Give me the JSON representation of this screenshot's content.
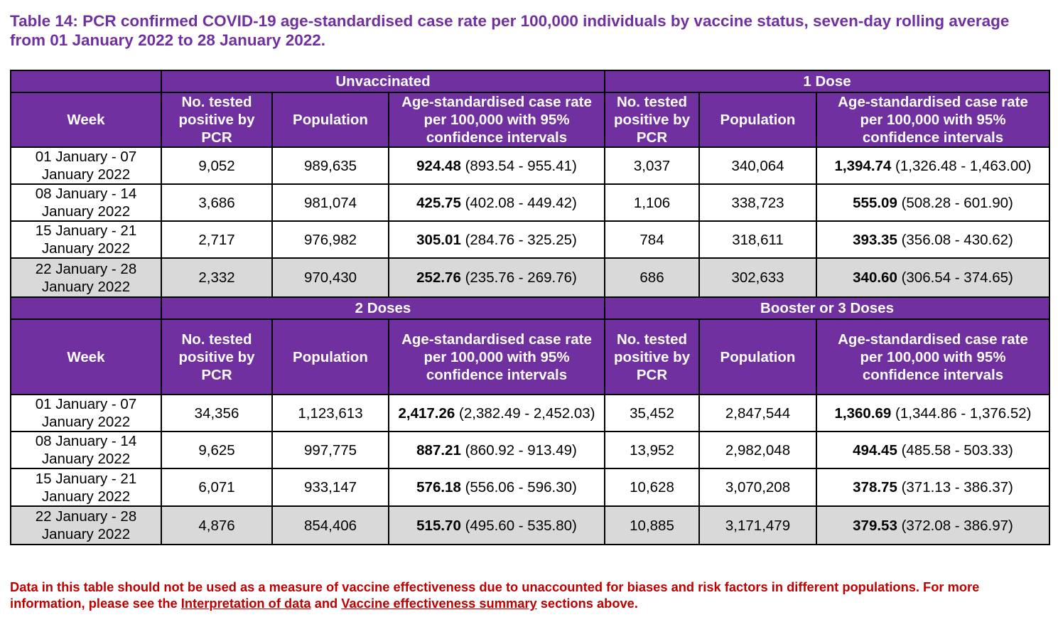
{
  "title": "Table 14: PCR confirmed COVID-19 age-standardised case rate per 100,000 individuals by vaccine status, seven-day rolling average from 01 January 2022 to 28 January 2022.",
  "headers": {
    "week": "Week",
    "tested": "No. tested positive by PCR",
    "tested_short": "No. tested positive by PCR",
    "population": "Population",
    "rate": "Age-standardised case rate per 100,000 with 95% confidence intervals"
  },
  "sections": [
    {
      "left_group": "Unvaccinated",
      "right_group": "1 Dose",
      "rows": [
        {
          "week_line1": "01 January - 07",
          "week_line2": "January 2022",
          "l_tested": "9,052",
          "l_pop": "989,635",
          "l_rate": "924.48",
          "l_ci": "(893.54 - 955.41)",
          "r_tested": "3,037",
          "r_pop": "340,064",
          "r_rate": "1,394.74",
          "r_ci": "(1,326.48 - 1,463.00)"
        },
        {
          "week_line1": "08 January - 14",
          "week_line2": "January 2022",
          "l_tested": "3,686",
          "l_pop": "981,074",
          "l_rate": "425.75",
          "l_ci": "(402.08 - 449.42)",
          "r_tested": "1,106",
          "r_pop": "338,723",
          "r_rate": "555.09",
          "r_ci": "(508.28 - 601.90)"
        },
        {
          "week_line1": "15 January - 21",
          "week_line2": "January 2022",
          "l_tested": "2,717",
          "l_pop": "976,982",
          "l_rate": "305.01",
          "l_ci": "(284.76 - 325.25)",
          "r_tested": "784",
          "r_pop": "318,611",
          "r_rate": "393.35",
          "r_ci": "(356.08 - 430.62)"
        },
        {
          "week_line1": "22 January - 28",
          "week_line2": "January 2022",
          "l_tested": "2,332",
          "l_pop": "970,430",
          "l_rate": "252.76",
          "l_ci": "(235.76 - 269.76)",
          "r_tested": "686",
          "r_pop": "302,633",
          "r_rate": "340.60",
          "r_ci": "(306.54 - 374.65)"
        }
      ]
    },
    {
      "left_group": "2 Doses",
      "right_group": "Booster or 3 Doses",
      "rows": [
        {
          "week_line1": "01 January - 07",
          "week_line2": "January 2022",
          "l_tested": "34,356",
          "l_pop": "1,123,613",
          "l_rate": "2,417.26",
          "l_ci": "(2,382.49 - 2,452.03)",
          "r_tested": "35,452",
          "r_pop": "2,847,544",
          "r_rate": "1,360.69",
          "r_ci": "(1,344.86 - 1,376.52)"
        },
        {
          "week_line1": "08 January - 14",
          "week_line2": "January 2022",
          "l_tested": "9,625",
          "l_pop": "997,775",
          "l_rate": "887.21",
          "l_ci": "(860.92 - 913.49)",
          "r_tested": "13,952",
          "r_pop": "2,982,048",
          "r_rate": "494.45",
          "r_ci": "(485.58 - 503.33)"
        },
        {
          "week_line1": "15 January - 21",
          "week_line2": "January 2022",
          "l_tested": "6,071",
          "l_pop": "933,147",
          "l_rate": "576.18",
          "l_ci": "(556.06 - 596.30)",
          "r_tested": "10,628",
          "r_pop": "3,070,208",
          "r_rate": "378.75",
          "r_ci": "(371.13 - 386.37)"
        },
        {
          "week_line1": "22 January - 28",
          "week_line2": "January 2022",
          "l_tested": "4,876",
          "l_pop": "854,406",
          "l_rate": "515.70",
          "l_ci": "(495.60 - 535.80)",
          "r_tested": "10,885",
          "r_pop": "3,171,479",
          "r_rate": "379.53",
          "r_ci": "(372.08 - 386.97)"
        }
      ]
    }
  ],
  "footnote": {
    "text_before": "Data in this table should not be used as a measure of vaccine effectiveness due to unaccounted for biases and risk factors in different populations. For more information, please see the ",
    "link1": "Interpretation of data",
    "text_middle": " and ",
    "link2": "Vaccine effectiveness summary",
    "text_after": " sections above."
  }
}
